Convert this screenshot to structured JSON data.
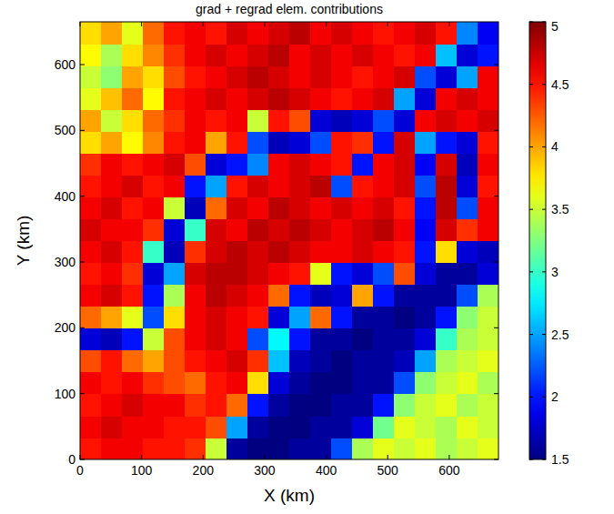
{
  "chart_data": {
    "type": "heatmap",
    "title": "grad + regrad elem. contributions",
    "x_label": "X (km)",
    "y_label": "Y (km)",
    "xlim": [
      0,
      680
    ],
    "ylim": [
      0,
      665
    ],
    "xticks": [
      0,
      100,
      200,
      300,
      400,
      500,
      600
    ],
    "yticks": [
      0,
      100,
      200,
      300,
      400,
      500,
      600
    ],
    "x": [
      17,
      51,
      85,
      119,
      153,
      187,
      221,
      255,
      289,
      323,
      357,
      391,
      425,
      459,
      493,
      527,
      561,
      595,
      629,
      663
    ],
    "y": [
      16.6,
      49.9,
      83.1,
      116.4,
      149.6,
      182.9,
      216.1,
      249.4,
      282.6,
      315.9,
      349.1,
      382.4,
      415.6,
      448.9,
      482.1,
      515.4,
      548.6,
      581.9,
      615.1,
      648.4
    ],
    "values": [
      [
        4.5,
        4.6,
        4.6,
        4.5,
        4.5,
        4.4,
        3.5,
        1.6,
        1.5,
        1.5,
        1.6,
        1.6,
        2.2,
        3.4,
        3.6,
        3.5,
        3.6,
        3.4,
        3.5,
        3.6
      ],
      [
        4.6,
        4.7,
        4.6,
        4.6,
        4.5,
        4.5,
        4.3,
        2.5,
        1.6,
        1.5,
        1.5,
        1.6,
        1.6,
        1.8,
        3.2,
        3.6,
        3.5,
        3.4,
        3.6,
        3.5
      ],
      [
        4.5,
        4.6,
        4.7,
        4.6,
        4.6,
        4.4,
        4.5,
        4.2,
        2.0,
        1.6,
        1.5,
        1.5,
        1.6,
        1.6,
        2.0,
        3.3,
        3.5,
        3.6,
        3.4,
        3.5
      ],
      [
        4.6,
        4.5,
        4.6,
        4.4,
        4.3,
        4.2,
        4.5,
        4.6,
        3.8,
        1.8,
        1.6,
        1.5,
        1.5,
        1.6,
        1.6,
        2.2,
        3.3,
        3.5,
        3.6,
        3.4
      ],
      [
        4.3,
        4.5,
        4.2,
        4.0,
        4.3,
        4.5,
        4.6,
        4.7,
        4.4,
        2.6,
        1.7,
        1.6,
        1.5,
        1.6,
        1.6,
        1.7,
        2.5,
        3.4,
        3.5,
        3.6
      ],
      [
        1.8,
        1.7,
        2.0,
        3.5,
        4.3,
        4.6,
        4.7,
        4.6,
        2.2,
        2.8,
        2.0,
        1.6,
        1.6,
        1.5,
        1.6,
        1.6,
        1.8,
        3.0,
        3.4,
        3.5
      ],
      [
        4.2,
        4.0,
        3.6,
        2.2,
        3.8,
        4.6,
        4.7,
        4.6,
        4.5,
        1.8,
        2.5,
        4.2,
        2.0,
        1.6,
        1.6,
        1.5,
        1.6,
        2.0,
        3.3,
        3.5
      ],
      [
        4.6,
        4.7,
        4.5,
        2.0,
        3.4,
        4.6,
        4.8,
        4.7,
        4.6,
        4.2,
        2.0,
        1.7,
        1.8,
        4.0,
        2.0,
        1.6,
        1.6,
        1.6,
        2.2,
        3.4
      ],
      [
        4.5,
        4.6,
        4.4,
        1.8,
        2.5,
        4.7,
        4.8,
        4.8,
        4.7,
        4.6,
        4.5,
        3.6,
        2.0,
        1.8,
        2.2,
        4.3,
        1.8,
        1.6,
        1.6,
        1.8
      ],
      [
        4.6,
        4.7,
        4.5,
        3.0,
        1.7,
        4.4,
        4.7,
        4.8,
        4.7,
        4.8,
        4.7,
        4.6,
        4.6,
        4.7,
        4.6,
        4.5,
        2.0,
        3.8,
        1.8,
        1.7
      ],
      [
        4.7,
        4.6,
        4.6,
        4.4,
        1.8,
        3.0,
        4.7,
        4.6,
        4.8,
        4.7,
        4.8,
        4.7,
        4.6,
        4.7,
        4.8,
        4.6,
        1.9,
        4.7,
        4.4,
        4.6
      ],
      [
        4.6,
        4.7,
        4.5,
        4.6,
        3.5,
        1.7,
        4.2,
        4.7,
        4.6,
        4.8,
        4.7,
        4.6,
        4.7,
        4.6,
        4.7,
        4.5,
        2.0,
        4.8,
        2.2,
        4.6
      ],
      [
        4.5,
        4.6,
        4.7,
        4.5,
        4.6,
        2.0,
        2.5,
        4.5,
        4.7,
        4.6,
        4.7,
        4.8,
        2.2,
        4.5,
        4.6,
        4.7,
        2.2,
        4.8,
        1.8,
        4.5
      ],
      [
        4.4,
        4.6,
        4.5,
        4.6,
        4.7,
        4.3,
        1.8,
        2.0,
        2.4,
        4.6,
        4.7,
        4.6,
        4.5,
        2.0,
        4.6,
        4.7,
        1.9,
        4.7,
        1.7,
        4.6
      ],
      [
        3.8,
        4.0,
        3.7,
        4.1,
        4.5,
        4.6,
        4.0,
        4.5,
        2.2,
        1.7,
        1.8,
        2.2,
        4.5,
        4.4,
        2.0,
        4.7,
        2.5,
        2.0,
        1.8,
        4.5
      ],
      [
        4.0,
        3.5,
        3.8,
        4.2,
        4.4,
        4.6,
        4.5,
        4.6,
        3.5,
        4.5,
        4.3,
        1.8,
        1.7,
        1.8,
        2.2,
        1.8,
        4.6,
        4.7,
        4.6,
        4.7
      ],
      [
        3.6,
        3.9,
        4.2,
        3.7,
        4.5,
        4.6,
        4.7,
        4.6,
        4.7,
        4.8,
        4.7,
        4.6,
        4.5,
        4.6,
        4.7,
        2.5,
        1.8,
        4.6,
        4.7,
        4.6
      ],
      [
        3.5,
        3.3,
        4.0,
        3.8,
        4.3,
        4.5,
        4.6,
        4.7,
        4.8,
        4.7,
        4.6,
        4.7,
        4.6,
        4.5,
        4.6,
        4.7,
        2.2,
        1.8,
        2.5,
        4.6
      ],
      [
        3.7,
        3.4,
        3.8,
        4.1,
        4.4,
        4.6,
        4.7,
        4.6,
        4.7,
        4.8,
        4.6,
        4.7,
        4.6,
        4.7,
        4.6,
        4.5,
        4.6,
        2.6,
        1.8,
        2.0
      ],
      [
        3.8,
        4.0,
        3.6,
        4.2,
        4.5,
        4.6,
        4.5,
        4.7,
        4.6,
        4.7,
        4.8,
        4.6,
        4.7,
        4.6,
        4.5,
        4.6,
        4.7,
        4.5,
        2.4,
        1.9
      ]
    ],
    "colorbar": {
      "range": [
        1.5,
        5
      ],
      "ticks": [
        1.5,
        2,
        2.5,
        3,
        3.5,
        4,
        4.5,
        5
      ]
    }
  }
}
